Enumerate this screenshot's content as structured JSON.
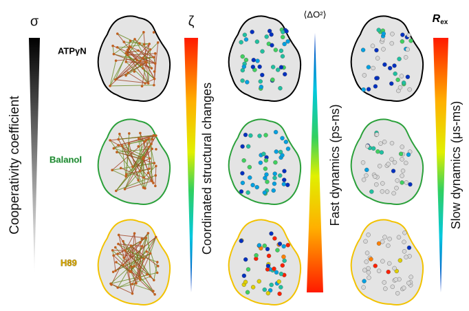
{
  "sigma_panel": {
    "symbol": "σ",
    "axis_label": "Cooperativity coefficient"
  },
  "ligands": [
    "ATPγN",
    "Balanol",
    "H89"
  ],
  "zeta_panel": {
    "symbol": "ζ",
    "axis_label": "Coordinated structural changes"
  },
  "fast_panel": {
    "symbol": "⟨ΔO²⟩",
    "axis_label": "Fast dynamics (ps-ns)"
  },
  "slow_panel": {
    "symbol_main": "R",
    "symbol_sub": "ex",
    "axis_label": "Slow dynamics (μs-ms)"
  }
}
